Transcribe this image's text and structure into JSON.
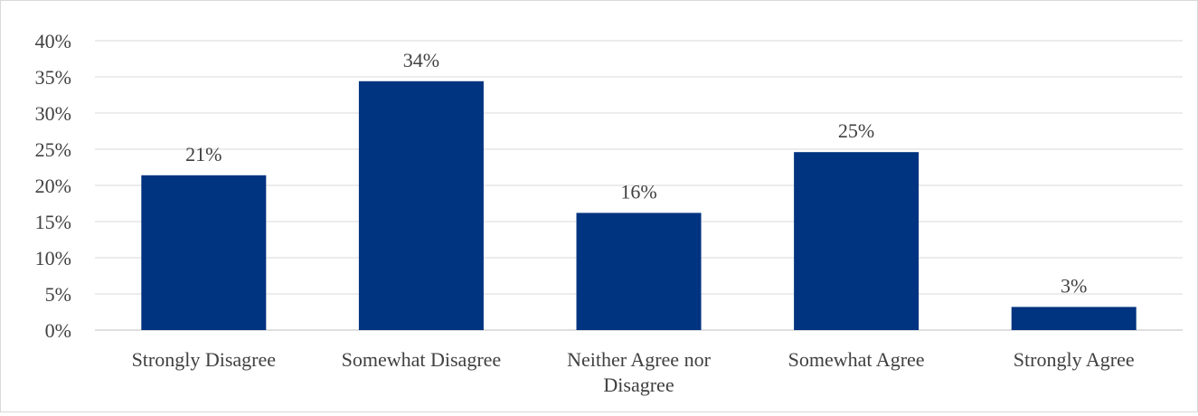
{
  "chart_data": {
    "type": "bar",
    "title": "",
    "xlabel": "",
    "ylabel": "",
    "categories": [
      [
        "Strongly Disagree"
      ],
      [
        "Somewhat Disagree"
      ],
      [
        "Neither Agree nor",
        "Disagree"
      ],
      [
        "Somewhat Agree"
      ],
      [
        "Strongly Agree"
      ]
    ],
    "values": [
      21.4,
      34.4,
      16.2,
      24.6,
      3.2
    ],
    "data_labels": [
      "21%",
      "34%",
      "16%",
      "25%",
      "3%"
    ],
    "ylim": [
      0,
      40
    ],
    "yticks": [
      0,
      5,
      10,
      15,
      20,
      25,
      30,
      35,
      40
    ],
    "ytick_labels": [
      "0%",
      "5%",
      "10%",
      "15%",
      "20%",
      "25%",
      "30%",
      "35%",
      "40%"
    ],
    "grid": true,
    "legend": "none",
    "colors": {
      "bar": "#003380",
      "grid": "#d9d9d9",
      "text": "#404040"
    }
  }
}
